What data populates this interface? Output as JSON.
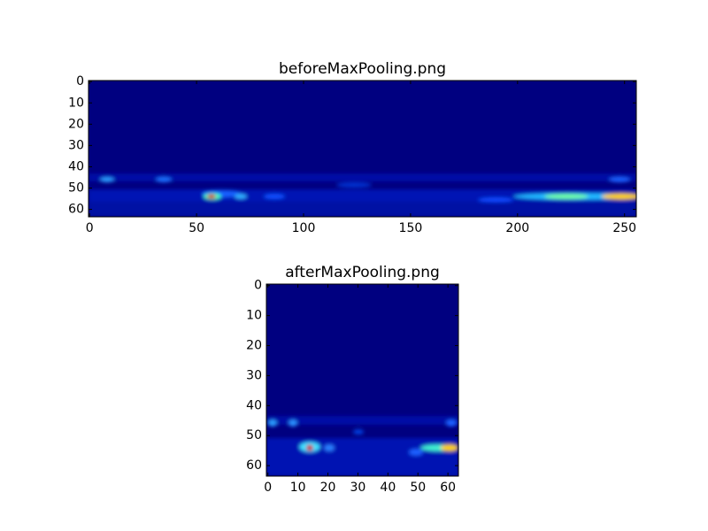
{
  "chart_data": [
    {
      "type": "image",
      "title": "beforeMaxPooling.png",
      "xlim": [
        -0.5,
        255.5
      ],
      "ylim": [
        63.5,
        -0.5
      ],
      "xticks": [
        0,
        50,
        100,
        150,
        200,
        250
      ],
      "yticks": [
        0,
        10,
        20,
        30,
        40,
        50,
        60
      ]
    },
    {
      "type": "image",
      "title": "afterMaxPooling.png",
      "xlim": [
        -0.5,
        63.5
      ],
      "ylim": [
        63.5,
        -0.5
      ],
      "xticks": [
        0,
        10,
        20,
        30,
        40,
        50,
        60
      ],
      "yticks": [
        0,
        10,
        20,
        30,
        40,
        50,
        60
      ]
    }
  ]
}
